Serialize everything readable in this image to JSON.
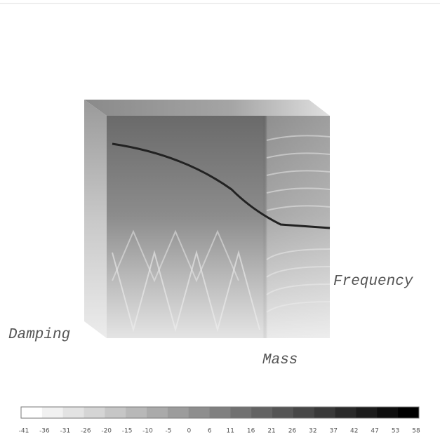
{
  "axes": {
    "x": "Mass",
    "y": "Damping",
    "z": "Frequency"
  },
  "colorbar": {
    "ticks": [
      -41,
      -36,
      -31,
      -26,
      -20,
      -15,
      -10,
      -5,
      0,
      6,
      11,
      16,
      21,
      26,
      32,
      37,
      42,
      47,
      53,
      58
    ]
  }
}
